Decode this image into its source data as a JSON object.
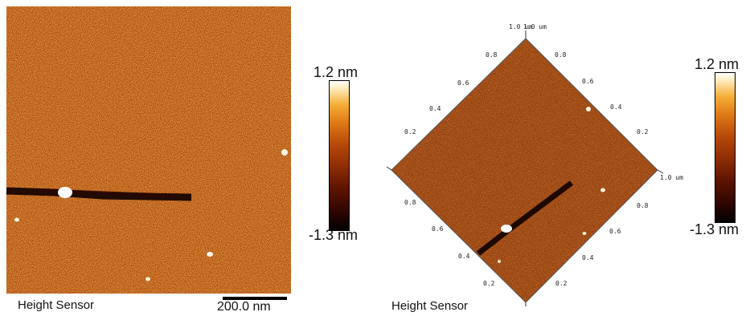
{
  "left_image": {
    "caption": "Height Sensor",
    "scale_bar_label": "200.0 nm"
  },
  "left_colorbar": {
    "max": "1.2 nm",
    "min": "-1.3 nm"
  },
  "right_image": {
    "caption": "Height Sensor",
    "top_label": "1.0 um",
    "top_label_overlap": "1.0 um",
    "right_axis_label": "1.0 um",
    "upper_left_ticks": [
      "0.8",
      "0.6",
      "0.4",
      "0.2"
    ],
    "upper_right_ticks": [
      "0.8",
      "0.6",
      "0.4",
      "0.2"
    ],
    "lower_left_ticks": [
      "0.8",
      "0.6",
      "0.4",
      "0.2"
    ],
    "lower_right_ticks": [
      "0.8",
      "0.6",
      "0.4",
      "0.2"
    ]
  },
  "right_colorbar": {
    "max": "1.2 nm",
    "min": "-1.3 nm"
  },
  "colors": {
    "height_low": "#000000",
    "height_mid": "#b84a0a",
    "height_high": "#ffffff"
  }
}
